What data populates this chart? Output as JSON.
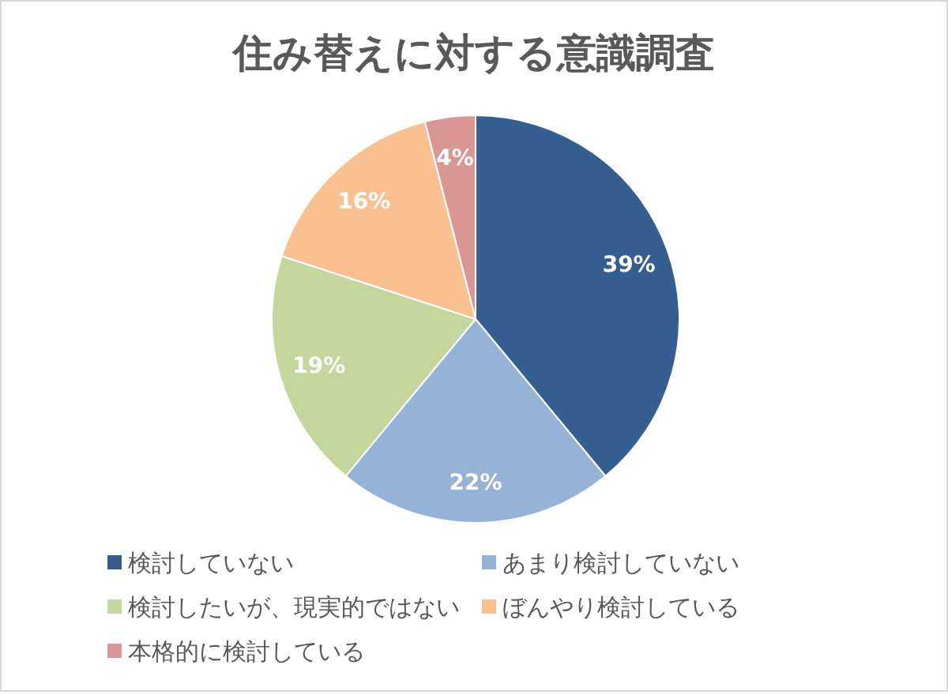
{
  "chart_data": {
    "type": "pie",
    "title": "住み替えに対する意識調査",
    "categories": [
      "検討していない",
      "あまり検討していない",
      "検討したいが、現実的ではない",
      "ぼんやり検討している",
      "本格的に検討している"
    ],
    "values": [
      39,
      22,
      19,
      16,
      4
    ],
    "value_labels": [
      "39%",
      "22%",
      "19%",
      "16%",
      "4%"
    ],
    "colors": [
      "#355f91",
      "#95b3d7",
      "#c3d69b",
      "#fac090",
      "#d99694"
    ],
    "legend": "bottom"
  }
}
